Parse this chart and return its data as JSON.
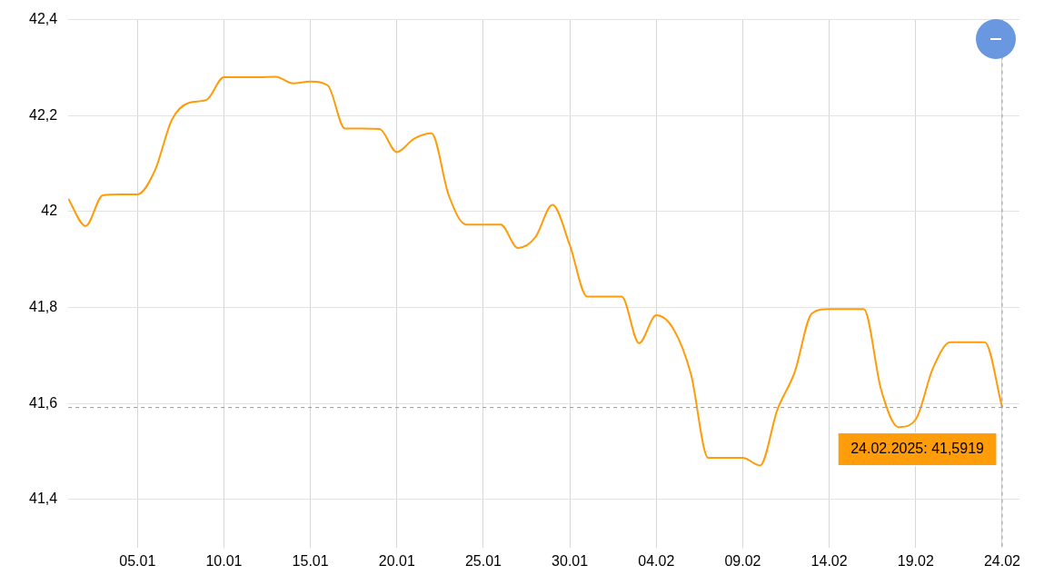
{
  "chart_data": {
    "type": "line",
    "x": [
      "2025-01-01",
      "2025-01-02",
      "2025-01-03",
      "2025-01-04",
      "2025-01-05",
      "2025-01-06",
      "2025-01-07",
      "2025-01-08",
      "2025-01-09",
      "2025-01-10",
      "2025-01-11",
      "2025-01-12",
      "2025-01-13",
      "2025-01-14",
      "2025-01-15",
      "2025-01-16",
      "2025-01-17",
      "2025-01-18",
      "2025-01-19",
      "2025-01-20",
      "2025-01-21",
      "2025-01-22",
      "2025-01-23",
      "2025-01-24",
      "2025-01-25",
      "2025-01-26",
      "2025-01-27",
      "2025-01-28",
      "2025-01-29",
      "2025-01-30",
      "2025-01-31",
      "2025-02-01",
      "2025-02-02",
      "2025-02-03",
      "2025-02-04",
      "2025-02-05",
      "2025-02-06",
      "2025-02-07",
      "2025-02-08",
      "2025-02-09",
      "2025-02-10",
      "2025-02-11",
      "2025-02-12",
      "2025-02-13",
      "2025-02-14",
      "2025-02-15",
      "2025-02-16",
      "2025-02-17",
      "2025-02-18",
      "2025-02-19",
      "2025-02-20",
      "2025-02-21",
      "2025-02-22",
      "2025-02-23",
      "2025-02-24"
    ],
    "series": [
      {
        "color": "#ff9c0a",
        "values": [
          42.027,
          41.97,
          42.034,
          42.036,
          42.036,
          42.085,
          42.192,
          42.227,
          42.233,
          42.28,
          42.28,
          42.28,
          42.281,
          42.267,
          42.271,
          42.263,
          42.173,
          42.173,
          42.172,
          42.124,
          42.152,
          42.163,
          42.034,
          41.973,
          41.973,
          41.973,
          41.924,
          41.946,
          42.014,
          41.93,
          41.823,
          41.823,
          41.823,
          41.726,
          41.784,
          41.755,
          41.662,
          41.487,
          41.487,
          41.487,
          41.471,
          41.587,
          41.665,
          41.788,
          41.797,
          41.797,
          41.797,
          41.629,
          41.551,
          41.567,
          41.674,
          41.728,
          41.728,
          41.728,
          41.5919
        ]
      }
    ],
    "xlim": [
      "2025-01-01",
      "2025-02-25"
    ],
    "xticks": [
      {
        "value": "2025-01-05",
        "label": "05.01"
      },
      {
        "value": "2025-01-10",
        "label": "10.01"
      },
      {
        "value": "2025-01-15",
        "label": "15.01"
      },
      {
        "value": "2025-01-20",
        "label": "20.01"
      },
      {
        "value": "2025-01-25",
        "label": "25.01"
      },
      {
        "value": "2025-01-30",
        "label": "30.01"
      },
      {
        "value": "2025-02-04",
        "label": "04.02"
      },
      {
        "value": "2025-02-09",
        "label": "09.02"
      },
      {
        "value": "2025-02-14",
        "label": "14.02"
      },
      {
        "value": "2025-02-19",
        "label": "19.02"
      },
      {
        "value": "2025-02-24",
        "label": "24.02"
      }
    ],
    "ylim": [
      41.3,
      42.4
    ],
    "yticks": [
      {
        "value": 41.4,
        "label": "41,4"
      },
      {
        "value": 41.6,
        "label": "41,6"
      },
      {
        "value": 41.8,
        "label": "41,8"
      },
      42,
      {
        "value": 42.2,
        "label": "42,2"
      },
      {
        "value": 42.4,
        "label": "42,4"
      }
    ],
    "grid": true,
    "marker": "none",
    "line_style": "solid",
    "legend": false,
    "ref_lines": [
      {
        "axis": "x",
        "value": "2025-02-24",
        "color": "#999999",
        "line_style": "dashed"
      },
      {
        "axis": "y",
        "value": 41.5919,
        "color": "#999999",
        "line_style": "dashed"
      }
    ],
    "annotations": [
      {
        "text": "24.02.2025: 41,5919",
        "x": "2025-02-24",
        "y": 41.5919
      }
    ]
  }
}
